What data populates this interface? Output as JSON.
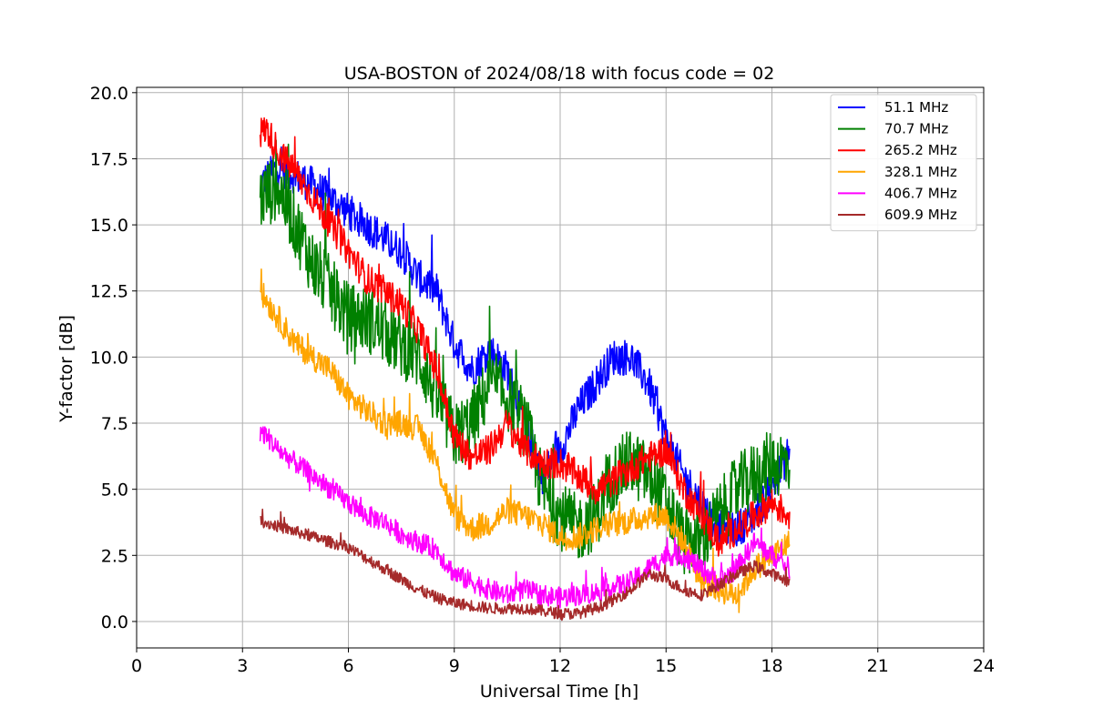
{
  "chart_data": {
    "type": "line",
    "title": "USA-BOSTON of 2024/08/18 with focus code = 02",
    "xlabel": "Universal Time [h]",
    "ylabel": "Y-factor [dB]",
    "xlim": [
      0,
      24
    ],
    "ylim": [
      -1.0,
      20.2
    ],
    "xticks": [
      0,
      3,
      6,
      9,
      12,
      15,
      18,
      21,
      24
    ],
    "xtick_labels": [
      "0",
      "3",
      "6",
      "9",
      "12",
      "15",
      "18",
      "21",
      "24"
    ],
    "yticks": [
      0.0,
      2.5,
      5.0,
      7.5,
      10.0,
      12.5,
      15.0,
      17.5,
      20.0
    ],
    "ytick_labels": [
      "0.0",
      "2.5",
      "5.0",
      "7.5",
      "10.0",
      "12.5",
      "15.0",
      "17.5",
      "20.0"
    ],
    "grid": true,
    "legend_position": "top-right",
    "series": [
      {
        "name": "51.1 MHz",
        "color": "#0000ff",
        "noise": 0.7,
        "x": [
          3.5,
          4.0,
          5.0,
          6.0,
          6.5,
          7.0,
          7.5,
          8.0,
          8.5,
          9.0,
          9.5,
          10.0,
          10.5,
          11.0,
          11.5,
          12.0,
          12.5,
          13.0,
          13.5,
          14.0,
          14.5,
          15.0,
          15.5,
          16.0,
          16.5,
          17.0,
          17.5,
          18.0,
          18.5
        ],
        "y": [
          16.5,
          17.2,
          16.5,
          15.5,
          15.0,
          14.5,
          14.0,
          13.0,
          12.5,
          10.5,
          9.5,
          10.3,
          9.5,
          7.5,
          5.5,
          6.5,
          8.0,
          9.0,
          10.0,
          10.0,
          9.0,
          7.0,
          5.5,
          4.5,
          3.5,
          3.5,
          4.0,
          5.0,
          6.5
        ]
      },
      {
        "name": "70.7 MHz",
        "color": "#008000",
        "noise": 1.3,
        "x": [
          3.5,
          4.0,
          4.5,
          5.0,
          5.5,
          6.0,
          6.5,
          7.0,
          7.5,
          8.0,
          8.5,
          9.0,
          9.5,
          10.0,
          10.5,
          11.0,
          11.5,
          12.0,
          12.5,
          13.0,
          13.5,
          14.0,
          14.5,
          15.0,
          15.5,
          16.0,
          16.5,
          17.0,
          17.5,
          18.0,
          18.5
        ],
        "y": [
          16.0,
          16.5,
          15.0,
          13.5,
          12.5,
          11.5,
          11.5,
          11.0,
          10.5,
          10.0,
          8.5,
          7.0,
          7.5,
          9.0,
          8.5,
          7.5,
          5.0,
          4.0,
          3.5,
          4.0,
          5.5,
          6.0,
          5.5,
          4.5,
          3.0,
          3.0,
          4.0,
          5.0,
          5.5,
          6.0,
          6.0
        ]
      },
      {
        "name": "265.2 MHz",
        "color": "#ff0000",
        "noise": 0.6,
        "x": [
          3.5,
          3.7,
          4.0,
          4.5,
          5.0,
          5.5,
          6.0,
          6.5,
          7.0,
          7.5,
          8.0,
          8.5,
          9.0,
          9.5,
          10.0,
          10.5,
          11.0,
          11.5,
          12.0,
          12.5,
          13.0,
          13.5,
          14.0,
          14.5,
          15.0,
          15.5,
          16.0,
          16.5,
          17.0,
          17.5,
          18.0,
          18.5
        ],
        "y": [
          18.5,
          18.6,
          17.8,
          17.0,
          16.0,
          15.0,
          14.0,
          13.0,
          12.5,
          12.0,
          11.0,
          9.5,
          7.0,
          6.2,
          6.5,
          7.5,
          6.5,
          6.0,
          6.0,
          5.5,
          5.0,
          5.3,
          5.8,
          6.2,
          6.5,
          5.0,
          4.0,
          3.0,
          3.5,
          4.0,
          4.5,
          4.0
        ]
      },
      {
        "name": "328.1 MHz",
        "color": "#ffa500",
        "noise": 0.5,
        "x": [
          3.5,
          4.0,
          4.5,
          5.0,
          5.5,
          6.0,
          6.5,
          7.0,
          7.5,
          8.0,
          8.5,
          9.0,
          9.5,
          10.0,
          10.5,
          11.0,
          11.5,
          12.0,
          12.5,
          13.0,
          13.5,
          14.0,
          14.5,
          15.0,
          15.5,
          16.0,
          16.5,
          17.0,
          17.5,
          18.0,
          18.5
        ],
        "y": [
          12.5,
          11.5,
          10.5,
          10.0,
          9.5,
          8.5,
          8.0,
          7.5,
          7.5,
          7.3,
          6.0,
          4.0,
          3.5,
          3.7,
          4.2,
          4.0,
          3.7,
          3.2,
          3.2,
          3.5,
          3.7,
          3.8,
          4.0,
          4.0,
          3.0,
          1.5,
          1.2,
          1.0,
          2.0,
          2.5,
          3.0
        ]
      },
      {
        "name": "406.7 MHz",
        "color": "#ff00ff",
        "noise": 0.4,
        "x": [
          3.5,
          3.7,
          4.0,
          4.5,
          5.0,
          5.5,
          6.0,
          6.5,
          7.0,
          7.5,
          8.0,
          8.5,
          9.0,
          9.5,
          10.0,
          10.5,
          11.0,
          11.5,
          12.0,
          12.5,
          13.0,
          13.5,
          14.0,
          14.5,
          15.0,
          15.5,
          16.0,
          16.5,
          17.0,
          17.5,
          18.0,
          18.5
        ],
        "y": [
          7.2,
          7.0,
          6.5,
          6.0,
          5.5,
          5.0,
          4.5,
          4.0,
          3.8,
          3.3,
          3.0,
          2.7,
          1.8,
          1.5,
          1.2,
          1.0,
          1.2,
          1.0,
          0.9,
          1.0,
          1.1,
          1.3,
          1.5,
          2.0,
          2.5,
          2.5,
          2.0,
          1.5,
          2.0,
          3.0,
          2.5,
          2.0
        ]
      },
      {
        "name": "609.9 MHz",
        "color": "#a52a2a",
        "noise": 0.22,
        "x": [
          3.5,
          4.0,
          4.5,
          5.0,
          5.5,
          6.0,
          6.5,
          7.0,
          7.5,
          8.0,
          8.5,
          9.0,
          9.5,
          10.0,
          10.5,
          11.0,
          11.5,
          12.0,
          12.5,
          13.0,
          13.5,
          14.0,
          14.5,
          15.0,
          15.5,
          16.0,
          16.5,
          17.0,
          17.5,
          18.0,
          18.5
        ],
        "y": [
          3.8,
          3.6,
          3.4,
          3.2,
          3.0,
          2.8,
          2.4,
          2.0,
          1.6,
          1.2,
          0.9,
          0.7,
          0.6,
          0.5,
          0.5,
          0.5,
          0.4,
          0.3,
          0.3,
          0.5,
          0.8,
          1.2,
          1.8,
          1.6,
          1.2,
          1.0,
          1.4,
          1.8,
          2.1,
          1.8,
          1.5
        ]
      }
    ]
  }
}
